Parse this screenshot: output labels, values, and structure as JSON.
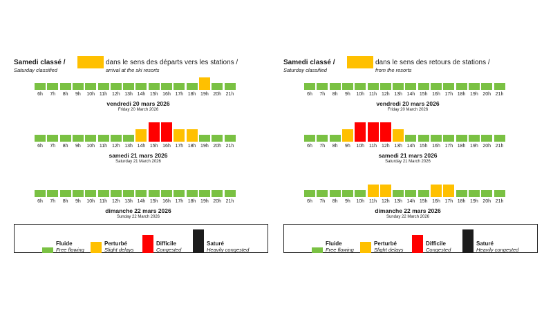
{
  "colors": {
    "fluide": "#7ac143",
    "perturbe": "#ffc000",
    "difficile": "#ff0000",
    "sature": "#1c1c1c"
  },
  "hours": [
    "6h",
    "7h",
    "8h",
    "9h",
    "10h",
    "11h",
    "12h",
    "13h",
    "14h",
    "15h",
    "16h",
    "17h",
    "18h",
    "19h",
    "20h",
    "21h"
  ],
  "legend": [
    {
      "key": "fluide",
      "name": "Fluide",
      "en": "Free flowing",
      "level": 1
    },
    {
      "key": "perturbe",
      "name": "Perturbé",
      "en": "Slight delays",
      "level": 2
    },
    {
      "key": "difficile",
      "name": "Difficile",
      "en": "Congested",
      "level": 3
    },
    {
      "key": "sature",
      "name": "Saturé",
      "en": "Heavily congested",
      "level": 4
    }
  ],
  "panels": [
    {
      "title": "Samedi classé /",
      "subtitle": "Saturday classified",
      "direction": "dans le sens des départs vers les stations /",
      "direction_en": "arrival at the ski resorts",
      "days": [
        {
          "label": "vendredi 20 mars 2026",
          "label_en": "Friday 20 March 2026"
        },
        {
          "label": "samedi 21 mars 2026",
          "label_en": "Saturday 21 March 2026"
        },
        {
          "label": "dimanche 22 mars 2026",
          "label_en": "Sunday 22 March 2026"
        }
      ]
    },
    {
      "title": "Samedi classé /",
      "subtitle": "Saturday classified",
      "direction": "dans le sens des retours de stations /",
      "direction_en": "from the resorts",
      "days": [
        {
          "label": "vendredi 20 mars 2026",
          "label_en": "Friday 20 March 2026"
        },
        {
          "label": "samedi 21 mars 2026",
          "label_en": "Saturday 21 March 2026"
        },
        {
          "label": "dimanche 22 mars 2026",
          "label_en": "Sunday 22 March 2026"
        }
      ]
    }
  ],
  "chart_data": [
    {
      "type": "bar",
      "categories": [
        "6h",
        "7h",
        "8h",
        "9h",
        "10h",
        "11h",
        "12h",
        "13h",
        "14h",
        "15h",
        "16h",
        "17h",
        "18h",
        "19h",
        "20h",
        "21h"
      ],
      "series": [
        {
          "name": "vendredi 20 mars 2026",
          "values": [
            1,
            1,
            1,
            1,
            1,
            1,
            1,
            1,
            1,
            1,
            1,
            1,
            1,
            2,
            1,
            1
          ]
        },
        {
          "name": "samedi 21 mars 2026",
          "values": [
            1,
            1,
            1,
            1,
            1,
            1,
            1,
            1,
            2,
            3,
            3,
            2,
            2,
            1,
            1,
            1
          ]
        },
        {
          "name": "dimanche 22 mars 2026",
          "values": [
            1,
            1,
            1,
            1,
            1,
            1,
            1,
            1,
            1,
            1,
            1,
            1,
            1,
            1,
            1,
            1
          ]
        }
      ]
    },
    {
      "type": "bar",
      "categories": [
        "6h",
        "7h",
        "8h",
        "9h",
        "10h",
        "11h",
        "12h",
        "13h",
        "14h",
        "15h",
        "16h",
        "17h",
        "18h",
        "19h",
        "20h",
        "21h"
      ],
      "series": [
        {
          "name": "vendredi 20 mars 2026",
          "values": [
            1,
            1,
            1,
            1,
            1,
            1,
            1,
            1,
            1,
            1,
            1,
            1,
            1,
            1,
            1,
            1
          ]
        },
        {
          "name": "samedi 21 mars 2026",
          "values": [
            1,
            1,
            1,
            2,
            3,
            3,
            3,
            2,
            1,
            1,
            1,
            1,
            1,
            1,
            1,
            1
          ]
        },
        {
          "name": "dimanche 22 mars 2026",
          "values": [
            1,
            1,
            1,
            1,
            1,
            2,
            2,
            1,
            1,
            1,
            2,
            2,
            1,
            1,
            1,
            1
          ]
        }
      ]
    }
  ]
}
